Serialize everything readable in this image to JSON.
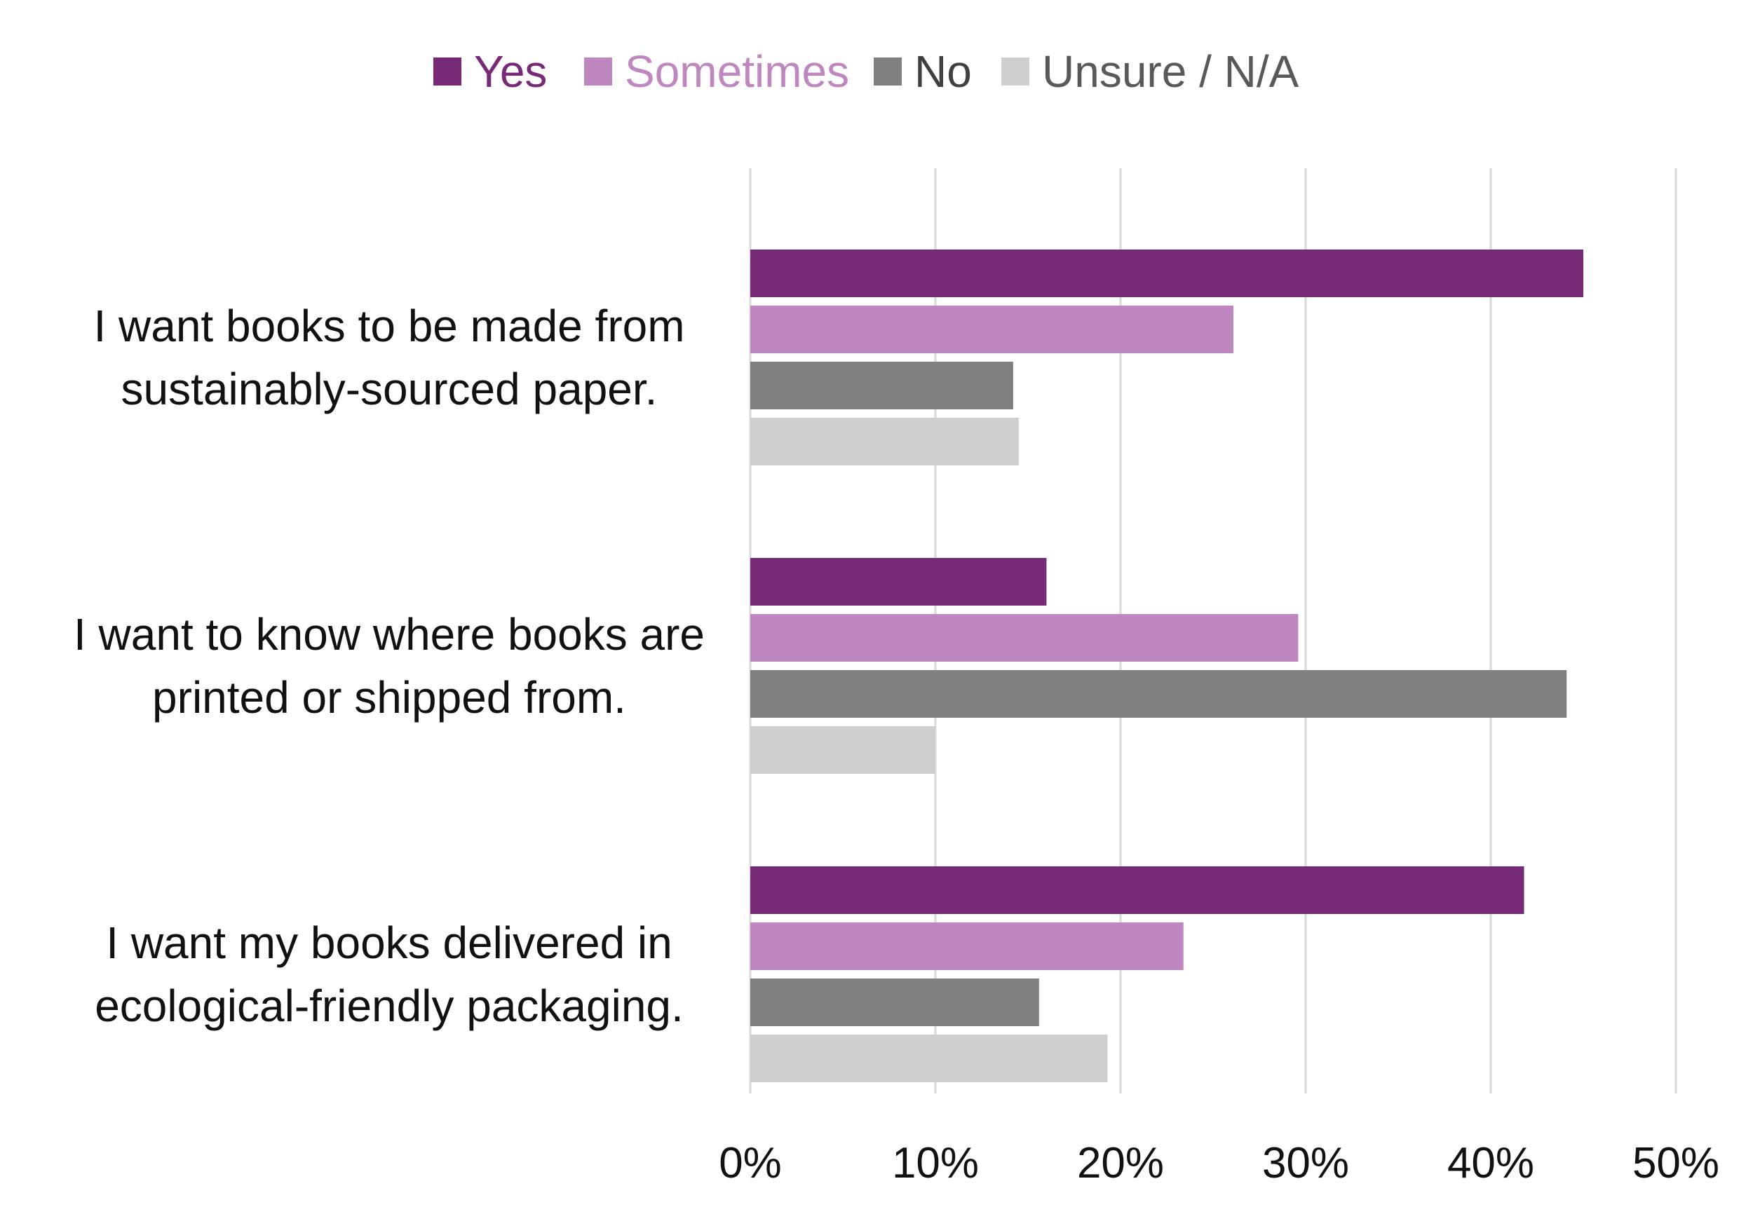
{
  "chart_data": {
    "type": "bar",
    "orientation": "horizontal",
    "title": "",
    "xlabel": "",
    "ylabel": "",
    "categories": [
      [
        "I want books to be made from",
        "sustainably-sourced paper."
      ],
      [
        "I want to know where books are",
        "printed or shipped from."
      ],
      [
        "I want my books delivered in",
        "ecological-friendly packaging."
      ]
    ],
    "series": [
      {
        "name": "Yes",
        "color": "#772B76",
        "values": [
          45,
          16,
          41.8
        ]
      },
      {
        "name": "Sometimes",
        "color": "#BF87C0",
        "values": [
          26.1,
          29.6,
          23.4
        ]
      },
      {
        "name": "No",
        "color": "#7F7F7F",
        "values": [
          14.2,
          44.1,
          15.6
        ]
      },
      {
        "name": "Unsure / N/A",
        "color": "#D0CFCF",
        "values": [
          14.5,
          10,
          19.3
        ]
      }
    ],
    "xlim": [
      0,
      50
    ],
    "xticks": [
      0,
      10,
      20,
      30,
      40,
      50
    ],
    "tick_format": "{v}%",
    "grid": true,
    "legend_position": "top-center"
  }
}
